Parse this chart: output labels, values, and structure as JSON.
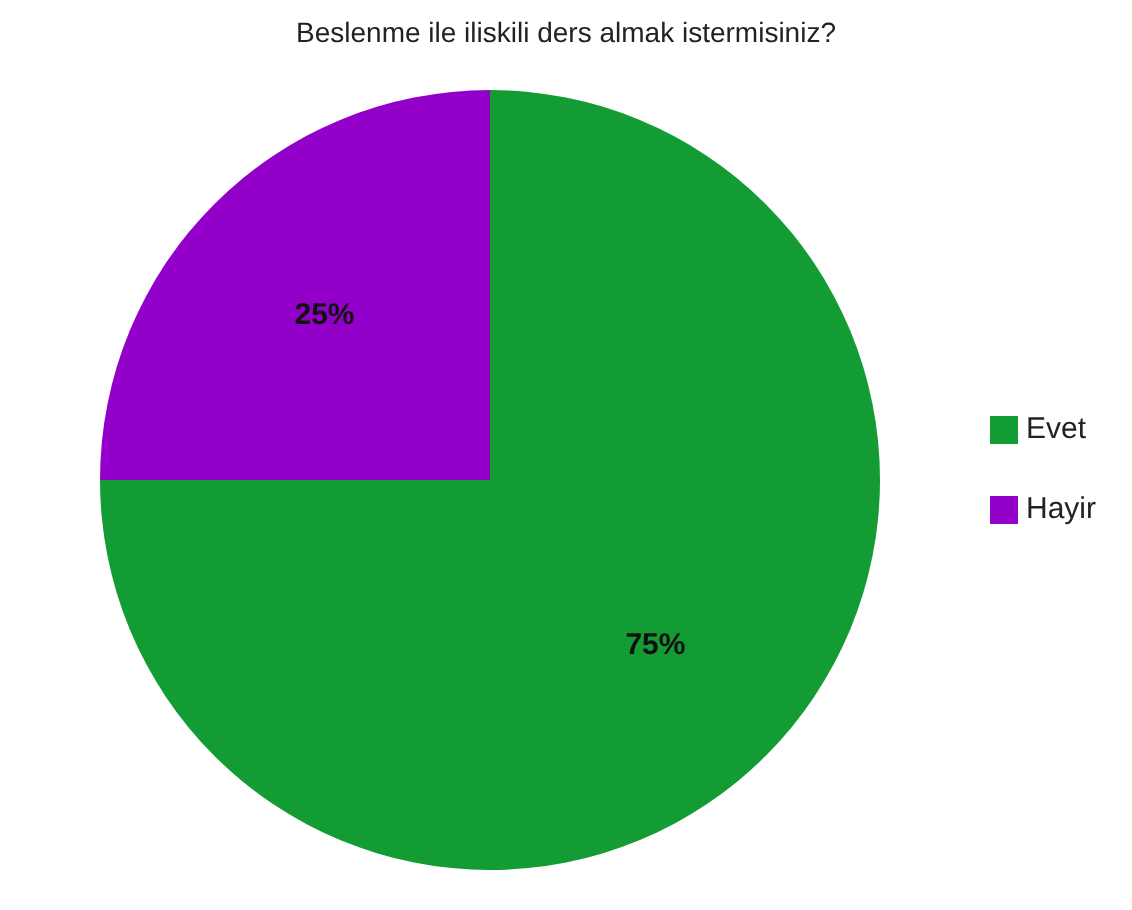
{
  "chart_data": {
    "type": "pie",
    "title": "Beslenme ile iliskili ders almak istermisiniz?",
    "categories": [
      "Evet",
      "Hayir"
    ],
    "values": [
      75,
      25
    ],
    "colors": [
      "#139c34",
      "#9300c9"
    ],
    "value_labels": [
      "75%",
      "25%"
    ],
    "legend": "right"
  }
}
